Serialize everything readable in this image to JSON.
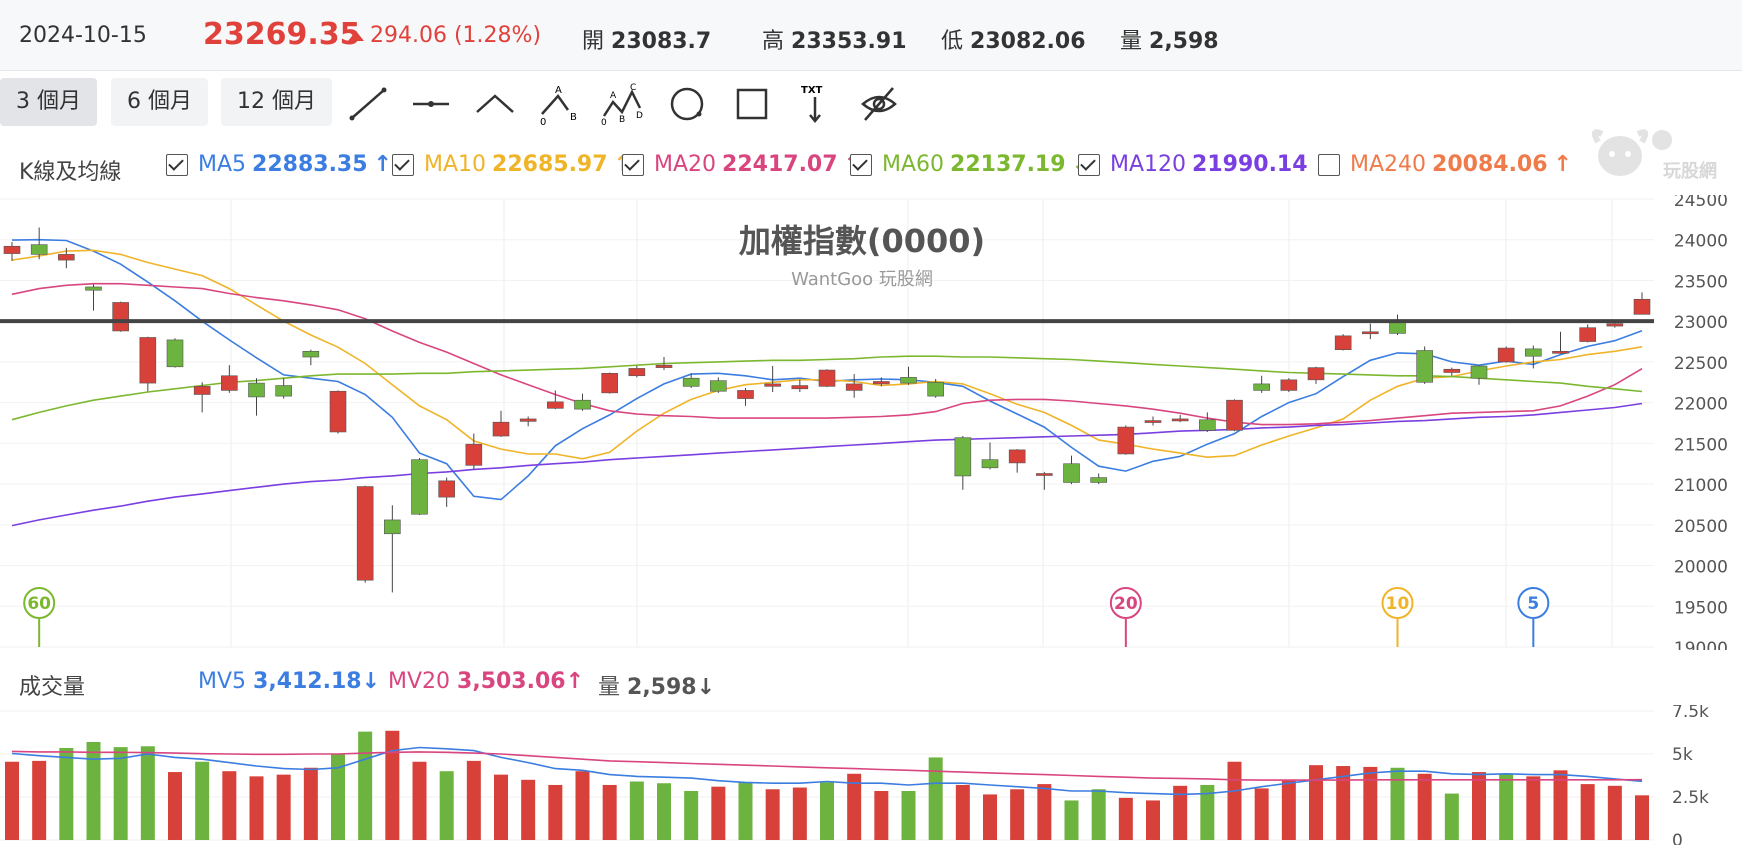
{
  "header": {
    "date": "2024-10-15",
    "price": "23269.35",
    "change": "294.06 (1.28%)",
    "open_label": "開",
    "open": "23083.7",
    "high_label": "高",
    "high": "23353.91",
    "low_label": "低",
    "low": "23082.06",
    "volume_label": "量",
    "volume": "2,598"
  },
  "range_buttons": [
    {
      "label": "3 個月",
      "active": true
    },
    {
      "label": "6 個月",
      "active": false
    },
    {
      "label": "12 個月",
      "active": false
    }
  ],
  "tools": [
    "line-tool-icon",
    "horizontal-line-tool-icon",
    "angle-tool-icon",
    "abc-pattern-tool-icon",
    "abcd-pattern-tool-icon",
    "circle-tool-icon",
    "rectangle-tool-icon",
    "text-tool-icon",
    "hide-drawings-icon"
  ],
  "tool_text": {
    "text_tool": "TXT",
    "a": "A",
    "b": "B",
    "c": "C",
    "d": "D",
    "zero": "0"
  },
  "legend": {
    "label": "K線及均線",
    "items": [
      {
        "name": "MA5",
        "value": "22883.35",
        "dir": "↑",
        "checked": true,
        "color": "#3b7de0"
      },
      {
        "name": "MA10",
        "value": "22685.97",
        "dir": "↑",
        "checked": true,
        "color": "#f0b429"
      },
      {
        "name": "MA20",
        "value": "22417.07",
        "dir": "↑",
        "checked": true,
        "color": "#d9467f"
      },
      {
        "name": "MA60",
        "value": "22137.19",
        "dir": "↓",
        "checked": true,
        "color": "#7cb82f"
      },
      {
        "name": "MA120",
        "value": "21990.14",
        "dir": "↑",
        "checked": true,
        "color": "#7a3fe0"
      },
      {
        "name": "MA240",
        "value": "20084.06",
        "dir": "↑",
        "checked": false,
        "color": "#ef7a4a"
      }
    ]
  },
  "watermark": {
    "brand": "玩股網",
    "title": "加權指數(0000)",
    "subtitle": "WantGoo 玩股網"
  },
  "volume_header": {
    "label": "成交量",
    "mv5_label": "MV5",
    "mv5": "3,412.18",
    "mv5_dir": "↓",
    "mv20_label": "MV20",
    "mv20": "3,503.06",
    "mv20_dir": "↑",
    "vol_label": "量",
    "vol": "2,598",
    "vol_dir": "↓"
  },
  "colors": {
    "up": "#d8413a",
    "down": "#6db33f",
    "ma5": "#3b7de0",
    "ma10": "#f0b429",
    "ma20": "#d9467f",
    "ma60": "#7cb82f",
    "ma120": "#7a3fe0",
    "hline": "#444444"
  },
  "chart_data": {
    "type": "candlestick",
    "price_axis": {
      "min": 19000,
      "max": 24500,
      "ticks": [
        "24500",
        "24000",
        "23500",
        "23000",
        "22500",
        "22000",
        "21500",
        "21000",
        "20500",
        "20000",
        "19500",
        "19000"
      ]
    },
    "horizontal_line": 23000,
    "candles": [
      {
        "o": 23830,
        "c": 23920,
        "h": 23970,
        "l": 23740
      },
      {
        "o": 23940,
        "c": 23820,
        "h": 24150,
        "l": 23760
      },
      {
        "o": 23750,
        "c": 23820,
        "h": 23900,
        "l": 23650
      },
      {
        "o": 23420,
        "c": 23380,
        "h": 23450,
        "l": 23130
      },
      {
        "o": 22880,
        "c": 23230,
        "h": 23240,
        "l": 22870
      },
      {
        "o": 22240,
        "c": 22800,
        "h": 22810,
        "l": 22140
      },
      {
        "o": 22770,
        "c": 22440,
        "h": 22790,
        "l": 22430
      },
      {
        "o": 22100,
        "c": 22200,
        "h": 22250,
        "l": 21880
      },
      {
        "o": 22150,
        "c": 22330,
        "h": 22460,
        "l": 22120
      },
      {
        "o": 22240,
        "c": 22070,
        "h": 22300,
        "l": 21840
      },
      {
        "o": 22210,
        "c": 22080,
        "h": 22300,
        "l": 22050
      },
      {
        "o": 22630,
        "c": 22560,
        "h": 22650,
        "l": 22460
      },
      {
        "o": 21640,
        "c": 22140,
        "h": 22150,
        "l": 21620
      },
      {
        "o": 19820,
        "c": 20970,
        "h": 20980,
        "l": 19790
      },
      {
        "o": 20560,
        "c": 20390,
        "h": 20740,
        "l": 19670
      },
      {
        "o": 21300,
        "c": 20630,
        "h": 21320,
        "l": 20620
      },
      {
        "o": 20840,
        "c": 21040,
        "h": 21080,
        "l": 20720
      },
      {
        "o": 21230,
        "c": 21490,
        "h": 21620,
        "l": 21180
      },
      {
        "o": 21590,
        "c": 21760,
        "h": 21900,
        "l": 21580
      },
      {
        "o": 21770,
        "c": 21800,
        "h": 21830,
        "l": 21710
      },
      {
        "o": 21930,
        "c": 22010,
        "h": 22150,
        "l": 21920
      },
      {
        "o": 22030,
        "c": 21920,
        "h": 22110,
        "l": 21900
      },
      {
        "o": 22120,
        "c": 22360,
        "h": 22370,
        "l": 22110
      },
      {
        "o": 22330,
        "c": 22420,
        "h": 22450,
        "l": 22310
      },
      {
        "o": 22430,
        "c": 22460,
        "h": 22560,
        "l": 22400
      },
      {
        "o": 22300,
        "c": 22200,
        "h": 22360,
        "l": 22180
      },
      {
        "o": 22270,
        "c": 22140,
        "h": 22310,
        "l": 22120
      },
      {
        "o": 22050,
        "c": 22150,
        "h": 22180,
        "l": 21960
      },
      {
        "o": 22200,
        "c": 22230,
        "h": 22450,
        "l": 22130
      },
      {
        "o": 22170,
        "c": 22210,
        "h": 22280,
        "l": 22130
      },
      {
        "o": 22200,
        "c": 22400,
        "h": 22410,
        "l": 22190
      },
      {
        "o": 22150,
        "c": 22230,
        "h": 22350,
        "l": 22060
      },
      {
        "o": 22230,
        "c": 22260,
        "h": 22310,
        "l": 22200
      },
      {
        "o": 22310,
        "c": 22240,
        "h": 22440,
        "l": 22220
      },
      {
        "o": 22250,
        "c": 22080,
        "h": 22290,
        "l": 22060
      },
      {
        "o": 21570,
        "c": 21100,
        "h": 21590,
        "l": 20930
      },
      {
        "o": 21300,
        "c": 21200,
        "h": 21510,
        "l": 21180
      },
      {
        "o": 21260,
        "c": 21420,
        "h": 21430,
        "l": 21140
      },
      {
        "o": 21110,
        "c": 21130,
        "h": 21150,
        "l": 20930
      },
      {
        "o": 21250,
        "c": 21020,
        "h": 21350,
        "l": 21000
      },
      {
        "o": 21080,
        "c": 21020,
        "h": 21130,
        "l": 21000
      },
      {
        "o": 21370,
        "c": 21700,
        "h": 21720,
        "l": 21360
      },
      {
        "o": 21760,
        "c": 21780,
        "h": 21830,
        "l": 21720
      },
      {
        "o": 21790,
        "c": 21800,
        "h": 21850,
        "l": 21760
      },
      {
        "o": 21790,
        "c": 21660,
        "h": 21880,
        "l": 21640
      },
      {
        "o": 21660,
        "c": 22030,
        "h": 22040,
        "l": 21650
      },
      {
        "o": 22230,
        "c": 22150,
        "h": 22330,
        "l": 22120
      },
      {
        "o": 22150,
        "c": 22280,
        "h": 22300,
        "l": 22130
      },
      {
        "o": 22280,
        "c": 22430,
        "h": 22440,
        "l": 22230
      },
      {
        "o": 22650,
        "c": 22820,
        "h": 22840,
        "l": 22640
      },
      {
        "o": 22860,
        "c": 22870,
        "h": 22970,
        "l": 22780
      },
      {
        "o": 22990,
        "c": 22850,
        "h": 23080,
        "l": 22830
      },
      {
        "o": 22640,
        "c": 22250,
        "h": 22690,
        "l": 22230
      },
      {
        "o": 22370,
        "c": 22410,
        "h": 22430,
        "l": 22330
      },
      {
        "o": 22450,
        "c": 22300,
        "h": 22460,
        "l": 22220
      },
      {
        "o": 22500,
        "c": 22670,
        "h": 22690,
        "l": 22490
      },
      {
        "o": 22660,
        "c": 22570,
        "h": 22700,
        "l": 22420
      },
      {
        "o": 22610,
        "c": 22630,
        "h": 22870,
        "l": 22600
      },
      {
        "o": 22750,
        "c": 22920,
        "h": 22960,
        "l": 22740
      },
      {
        "o": 22940,
        "c": 22970,
        "h": 22980,
        "l": 22920
      },
      {
        "o": 23083.7,
        "c": 23269.35,
        "h": 23353.91,
        "l": 23082.06
      }
    ],
    "ma_series": [
      {
        "name": "MA5",
        "color": "#3b7de0",
        "values": [
          23995,
          24000,
          23990,
          23860,
          23700,
          23480,
          23250,
          23000,
          22770,
          22550,
          22340,
          22300,
          22260,
          22100,
          21820,
          21380,
          21250,
          20850,
          20810,
          21100,
          21470,
          21680,
          21850,
          22050,
          22230,
          22350,
          22360,
          22330,
          22280,
          22300,
          22260,
          22280,
          22290,
          22280,
          22250,
          22200,
          22020,
          21860,
          21700,
          21450,
          21220,
          21160,
          21280,
          21340,
          21490,
          21620,
          21830,
          22000,
          22110,
          22320,
          22520,
          22610,
          22600,
          22500,
          22460,
          22510,
          22470,
          22590,
          22690,
          22760,
          22883
        ]
      },
      {
        "name": "MA10",
        "color": "#f0b429",
        "values": [
          23750,
          23800,
          23860,
          23870,
          23820,
          23720,
          23640,
          23560,
          23400,
          23200,
          23000,
          22830,
          22680,
          22480,
          22220,
          21960,
          21790,
          21530,
          21430,
          21370,
          21370,
          21310,
          21390,
          21650,
          21870,
          22040,
          22150,
          22220,
          22250,
          22280,
          22280,
          22260,
          22210,
          22230,
          22260,
          22230,
          22110,
          21980,
          21880,
          21720,
          21540,
          21490,
          21430,
          21380,
          21330,
          21350,
          21480,
          21590,
          21690,
          21800,
          22030,
          22200,
          22300,
          22320,
          22390,
          22450,
          22500,
          22530,
          22590,
          22630,
          22686
        ]
      },
      {
        "name": "MA20",
        "color": "#d9467f",
        "values": [
          23330,
          23400,
          23440,
          23460,
          23460,
          23440,
          23420,
          23400,
          23340,
          23290,
          23250,
          23200,
          23140,
          23030,
          22880,
          22740,
          22620,
          22480,
          22340,
          22220,
          22100,
          21990,
          21900,
          21860,
          21840,
          21830,
          21810,
          21810,
          21810,
          21810,
          21810,
          21820,
          21830,
          21850,
          21890,
          21990,
          22030,
          22040,
          22040,
          22020,
          21990,
          21960,
          21920,
          21870,
          21810,
          21760,
          21730,
          21730,
          21740,
          21760,
          21780,
          21810,
          21840,
          21870,
          21880,
          21890,
          21900,
          21960,
          22080,
          22220,
          22417
        ]
      },
      {
        "name": "MA60",
        "color": "#7cb82f",
        "values": [
          21790,
          21880,
          21960,
          22030,
          22080,
          22130,
          22170,
          22210,
          22250,
          22270,
          22300,
          22330,
          22350,
          22350,
          22350,
          22360,
          22360,
          22380,
          22390,
          22400,
          22410,
          22420,
          22440,
          22460,
          22480,
          22490,
          22500,
          22510,
          22520,
          22520,
          22530,
          22540,
          22560,
          22570,
          22570,
          22560,
          22560,
          22550,
          22540,
          22530,
          22510,
          22490,
          22470,
          22450,
          22430,
          22410,
          22390,
          22370,
          22360,
          22350,
          22340,
          22330,
          22330,
          22320,
          22300,
          22280,
          22260,
          22240,
          22200,
          22170,
          22137
        ]
      },
      {
        "name": "MA120",
        "color": "#7a3fe0",
        "values": [
          20490,
          20560,
          20620,
          20680,
          20730,
          20790,
          20840,
          20880,
          20920,
          20960,
          21000,
          21030,
          21050,
          21080,
          21100,
          21130,
          21150,
          21180,
          21200,
          21230,
          21250,
          21270,
          21300,
          21320,
          21340,
          21360,
          21380,
          21400,
          21420,
          21440,
          21460,
          21480,
          21500,
          21520,
          21540,
          21550,
          21560,
          21570,
          21580,
          21590,
          21600,
          21610,
          21630,
          21650,
          21660,
          21670,
          21690,
          21700,
          21720,
          21730,
          21750,
          21770,
          21780,
          21800,
          21820,
          21830,
          21850,
          21880,
          21910,
          21940,
          21990
        ]
      }
    ],
    "ma_markers": [
      {
        "label": "60",
        "index": 1,
        "color": "#7cb82f"
      },
      {
        "label": "20",
        "index": 41,
        "color": "#d9467f"
      },
      {
        "label": "10",
        "index": 51,
        "color": "#f0b429"
      },
      {
        "label": "5",
        "index": 56,
        "color": "#3b7de0"
      }
    ],
    "volume_axis": {
      "min": 0,
      "max": 7500,
      "ticks": [
        "7.5k",
        "5k",
        "2.5k",
        "0"
      ]
    },
    "volume": [
      4550,
      4600,
      5350,
      5700,
      5400,
      5450,
      3950,
      4550,
      4000,
      3700,
      3800,
      4200,
      5000,
      6300,
      6350,
      4550,
      4000,
      4600,
      3800,
      3500,
      3200,
      4000,
      3200,
      3400,
      3300,
      2850,
      3100,
      3350,
      2950,
      3050,
      3350,
      3850,
      2850,
      2850,
      4800,
      3200,
      2650,
      2950,
      3250,
      2300,
      2950,
      2450,
      2300,
      3150,
      3200,
      4550,
      3000,
      3450,
      4350,
      4300,
      4250,
      4200,
      3850,
      2700,
      3950,
      3850,
      3700,
      4050,
      3250,
      3150,
      2598
    ],
    "volume_up": [
      true,
      true,
      false,
      false,
      false,
      false,
      true,
      false,
      true,
      true,
      true,
      true,
      false,
      false,
      true,
      true,
      false,
      true,
      true,
      true,
      true,
      true,
      true,
      false,
      false,
      false,
      true,
      false,
      true,
      true,
      false,
      true,
      true,
      false,
      false,
      true,
      true,
      true,
      true,
      false,
      false,
      true,
      true,
      true,
      false,
      true,
      true,
      true,
      true,
      true,
      true,
      false,
      true,
      false,
      true,
      false,
      true,
      true,
      true,
      true,
      true
    ],
    "mv_series": [
      {
        "name": "MV5",
        "color": "#3b7de0",
        "values": [
          5030,
          4900,
          4800,
          4700,
          4750,
          5000,
          4800,
          4700,
          4500,
          4300,
          4150,
          4100,
          4200,
          4700,
          5200,
          5380,
          5300,
          5200,
          4800,
          4500,
          4150,
          4050,
          3800,
          3700,
          3650,
          3600,
          3450,
          3350,
          3300,
          3300,
          3400,
          3300,
          3300,
          3200,
          3300,
          3300,
          3200,
          3100,
          3000,
          2850,
          2850,
          2750,
          2700,
          2650,
          2700,
          2850,
          3100,
          3300,
          3500,
          3700,
          3900,
          4000,
          4000,
          3850,
          3800,
          3850,
          3800,
          3800,
          3700,
          3550,
          3412
        ]
      },
      {
        "name": "MV20",
        "color": "#d9467f",
        "values": [
          5150,
          5120,
          5120,
          5100,
          5100,
          5080,
          5050,
          5020,
          5000,
          4980,
          4980,
          5000,
          5000,
          5050,
          5100,
          5120,
          5100,
          5050,
          5000,
          4900,
          4800,
          4700,
          4600,
          4550,
          4500,
          4450,
          4400,
          4350,
          4300,
          4250,
          4200,
          4150,
          4100,
          4050,
          4000,
          3950,
          3900,
          3850,
          3800,
          3750,
          3700,
          3650,
          3600,
          3580,
          3550,
          3500,
          3480,
          3480,
          3480,
          3480,
          3500,
          3500,
          3500,
          3500,
          3500,
          3500,
          3500,
          3500,
          3500,
          3500,
          3503
        ]
      }
    ]
  }
}
